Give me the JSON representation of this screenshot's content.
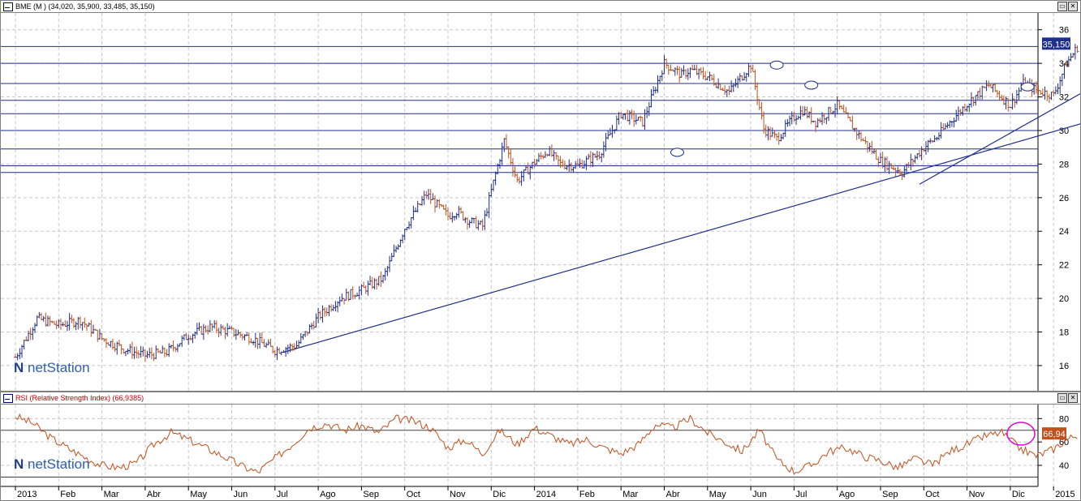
{
  "main_title": "BME (M ) (34,020, 35,900, 33,485, 35,150)",
  "rsi_title": "RSI (Relative Strength Index) (66,9385)",
  "brand": "netStation",
  "price_badge": "35,150",
  "rsi_badge": "66,94",
  "colors": {
    "up": "#1f2f8c",
    "down": "#c0501c",
    "rsi": "#c0501c",
    "line": "#1f2f8c",
    "grid": "#c8c8c8",
    "highlight": "#e000e0"
  },
  "chart_data": [
    {
      "type": "candlestick",
      "title": "BME (M )",
      "ylim": [
        14.5,
        37
      ],
      "ytick_labels": [
        "16",
        "18",
        "20",
        "22",
        "24",
        "26",
        "28",
        "30",
        "32",
        "34",
        "36"
      ],
      "x_labels": [
        "2013",
        "Feb",
        "Mar",
        "Abr",
        "May",
        "Jun",
        "Jul",
        "Ago",
        "Sep",
        "Oct",
        "Nov",
        "Dic",
        "2014",
        "Feb",
        "Mar",
        "Abr",
        "May",
        "Jun",
        "Jul",
        "Ago",
        "Sep",
        "Oct",
        "Nov",
        "Dic",
        "2015"
      ],
      "grid": true,
      "last_close": 35.15,
      "series": [
        {
          "x_months": [
            0,
            0.5,
            1,
            1.5,
            2,
            2.5,
            3,
            3.5,
            4,
            4.5,
            5,
            5.5,
            6,
            6.5,
            7,
            7.5,
            8,
            8.5,
            9,
            9.5,
            10,
            10.2,
            10.5,
            10.8,
            11,
            11.3,
            11.6,
            12,
            12.3,
            12.6,
            13,
            13.5,
            14,
            14.5,
            15,
            15.4,
            15.6,
            16,
            16.5,
            17,
            17.3,
            17.6,
            18,
            18.2,
            18.5,
            19,
            19.5,
            20,
            20.5,
            21,
            21.3,
            21.6,
            22,
            22.5,
            23,
            23.3,
            23.6,
            24,
            24.3,
            24.6
          ],
          "values": [
            16.5,
            18.8,
            18.4,
            18.7,
            17.6,
            17.0,
            16.6,
            16.8,
            17.8,
            18.3,
            18.0,
            17.6,
            16.9,
            17.2,
            18.9,
            20.0,
            20.5,
            21.2,
            24.2,
            26.2,
            24.9,
            25.2,
            24.6,
            24.3,
            26.4,
            29.4,
            27.0,
            28.1,
            28.8,
            28.0,
            27.9,
            28.6,
            31.0,
            30.5,
            34.0,
            33.3,
            33.6,
            33.2,
            32.3,
            33.9,
            30.1,
            29.5,
            30.8,
            31.2,
            30.5,
            31.5,
            29.7,
            28.2,
            27.5,
            29.0,
            29.6,
            30.5,
            31.6,
            32.7,
            31.5,
            32.8,
            32.4,
            32.1,
            34.0,
            35.15
          ]
        }
      ],
      "horizontal_levels": [
        35.0,
        34.0,
        32.8,
        31.8,
        31.0,
        30.0,
        28.9,
        27.9,
        27.5
      ],
      "trendlines": [
        {
          "from": [
            6.2,
            16.8
          ],
          "to": [
            24.9,
            30.6
          ]
        },
        {
          "from": [
            20.9,
            26.8
          ],
          "to": [
            24.9,
            32.6
          ]
        }
      ]
    },
    {
      "type": "line",
      "title": "RSI (Relative Strength Index)",
      "ylim": [
        22,
        92
      ],
      "ytick_labels": [
        "40",
        "60",
        "80"
      ],
      "reference_lines": [
        70,
        30
      ],
      "last_value": 66.94,
      "series": [
        {
          "x_months": [
            0,
            0.4,
            0.8,
            1.2,
            1.6,
            2,
            2.4,
            2.8,
            3.2,
            3.6,
            4,
            4.4,
            4.8,
            5.2,
            5.6,
            6,
            6.4,
            6.8,
            7.2,
            7.6,
            8,
            8.4,
            8.8,
            9.2,
            9.6,
            10,
            10.4,
            10.8,
            11.2,
            11.6,
            12,
            12.4,
            12.8,
            13.2,
            13.6,
            14,
            14.4,
            14.8,
            15.2,
            15.6,
            16,
            16.4,
            16.8,
            17.2,
            17.6,
            18,
            18.4,
            18.8,
            19.2,
            19.6,
            20,
            20.4,
            20.8,
            21.2,
            21.6,
            22,
            22.4,
            22.8,
            23.2,
            23.6,
            24,
            24.3,
            24.6
          ],
          "values": [
            82,
            76,
            64,
            55,
            47,
            40,
            38,
            42,
            58,
            68,
            62,
            55,
            48,
            40,
            34,
            46,
            58,
            72,
            76,
            70,
            74,
            68,
            80,
            78,
            72,
            55,
            62,
            50,
            70,
            58,
            72,
            65,
            58,
            62,
            55,
            50,
            58,
            75,
            72,
            80,
            68,
            60,
            52,
            70,
            45,
            35,
            40,
            52,
            55,
            48,
            44,
            38,
            46,
            40,
            52,
            58,
            65,
            68,
            55,
            48,
            54,
            62,
            67
          ]
        }
      ]
    }
  ]
}
